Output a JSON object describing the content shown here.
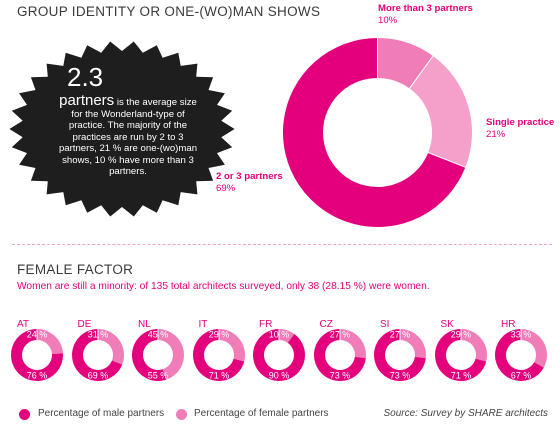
{
  "section1": {
    "heading": "GROUP IDENTITY OR ONE-(WO)MAN SHOWS"
  },
  "badge": {
    "number": "2.3",
    "word": "partners",
    "text_first": " is the average size for the Wonderland-type of practice. The majority of the practices are run by 2 to 3 partners, 21 % are one-(wo)man shows, 10 % have more than 3 partners."
  },
  "section2": {
    "heading": "FEMALE FACTOR",
    "subtitle": "Women are still a minority: of 135 total architects surveyed, only 38 (28.15 %) were women."
  },
  "legend": {
    "male": "Percentage of male partners",
    "female": "Percentage of female partners"
  },
  "source": "Source: Survey by SHARE architects",
  "colors": {
    "magenta": "#e4007c",
    "pink": "#f07cb8",
    "light_pink": "#f5a0cb",
    "badge": "#1e1e1e"
  },
  "chart_data": [
    {
      "type": "pie",
      "style": "donut",
      "categories": [
        "More than 3 partners",
        "Single practice",
        "2 or 3 partners"
      ],
      "values": [
        10,
        21,
        69
      ],
      "value_labels": [
        "10%",
        "21%",
        "69%"
      ]
    },
    {
      "type": "pie",
      "style": "donut-small-multiples",
      "categories": [
        "AT",
        "DE",
        "NL",
        "IT",
        "FR",
        "CZ",
        "SI",
        "SK",
        "HR"
      ],
      "series": [
        {
          "name": "Percentage of male partners",
          "values": [
            76,
            69,
            55,
            71,
            90,
            73,
            73,
            71,
            67
          ]
        },
        {
          "name": "Percentage of female partners",
          "values": [
            24,
            31,
            45,
            29,
            10,
            27,
            27,
            29,
            33
          ]
        }
      ],
      "label_suffix": " %"
    }
  ]
}
